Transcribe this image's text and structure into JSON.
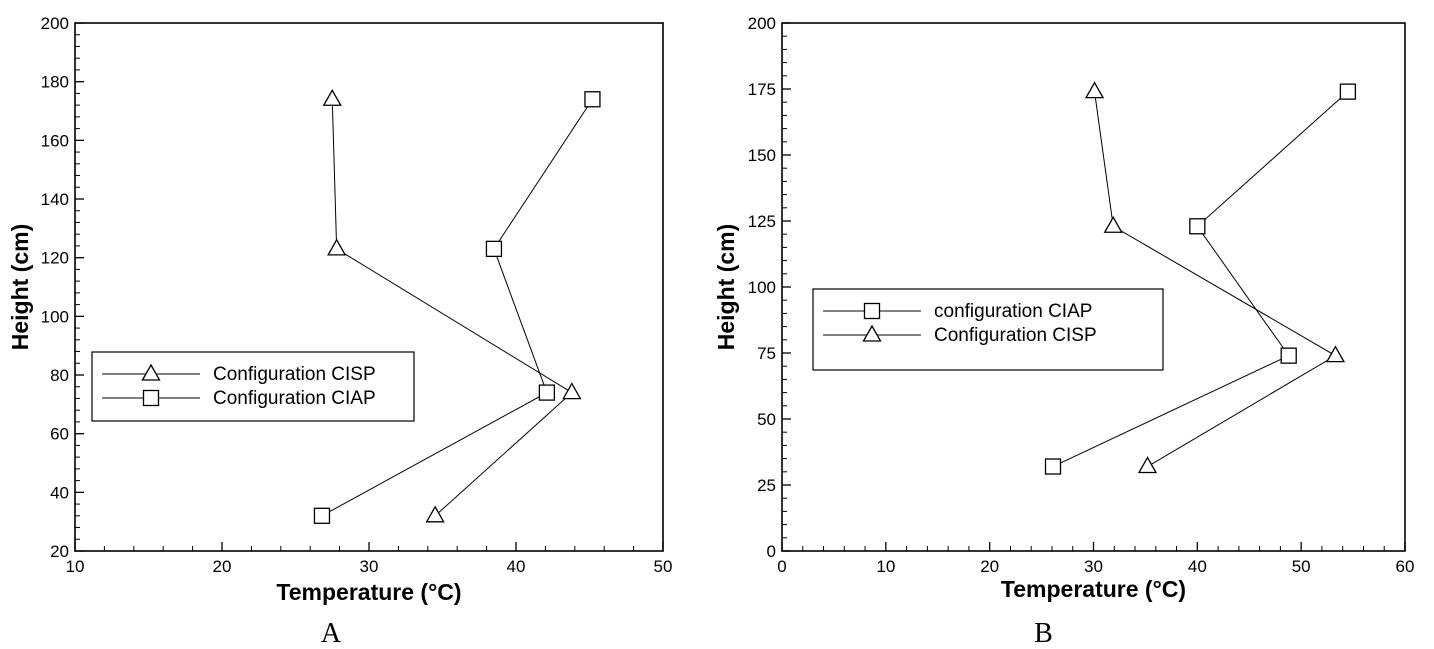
{
  "chart_data": [
    {
      "type": "line",
      "panel_label": "A",
      "xlabel": "Temperature (°C)",
      "ylabel": "Height (cm)",
      "xlim": [
        10,
        50
      ],
      "ylim": [
        20,
        200
      ],
      "xticks": [
        10,
        20,
        30,
        40,
        50
      ],
      "yticks": [
        20,
        40,
        60,
        80,
        100,
        120,
        140,
        160,
        180,
        200
      ],
      "grid": false,
      "legend_position": "center-left",
      "series": [
        {
          "name": "Configuration CISP",
          "marker": "triangle",
          "points": [
            [
              34.5,
              32
            ],
            [
              43.8,
              74
            ],
            [
              27.8,
              123
            ],
            [
              27.5,
              174
            ]
          ]
        },
        {
          "name": "Configuration CIAP",
          "marker": "square",
          "points": [
            [
              26.8,
              32
            ],
            [
              42.1,
              74
            ],
            [
              38.5,
              123
            ],
            [
              45.2,
              174
            ]
          ]
        }
      ]
    },
    {
      "type": "line",
      "panel_label": "B",
      "xlabel": "Temperature (°C)",
      "ylabel": "Height (cm)",
      "xlim": [
        0,
        60
      ],
      "ylim": [
        0,
        200
      ],
      "xticks": [
        0,
        10,
        20,
        30,
        40,
        50,
        60
      ],
      "yticks": [
        0,
        25,
        50,
        75,
        100,
        125,
        150,
        175,
        200
      ],
      "grid": false,
      "legend_position": "center-left",
      "series": [
        {
          "name": "configuration CIAP",
          "marker": "square",
          "points": [
            [
              26.1,
              32
            ],
            [
              48.8,
              74
            ],
            [
              40.0,
              123
            ],
            [
              54.5,
              174
            ]
          ]
        },
        {
          "name": "Configuration CISP",
          "marker": "triangle",
          "points": [
            [
              35.2,
              32
            ],
            [
              53.3,
              74
            ],
            [
              31.9,
              123
            ],
            [
              30.1,
              174
            ]
          ]
        }
      ]
    }
  ]
}
